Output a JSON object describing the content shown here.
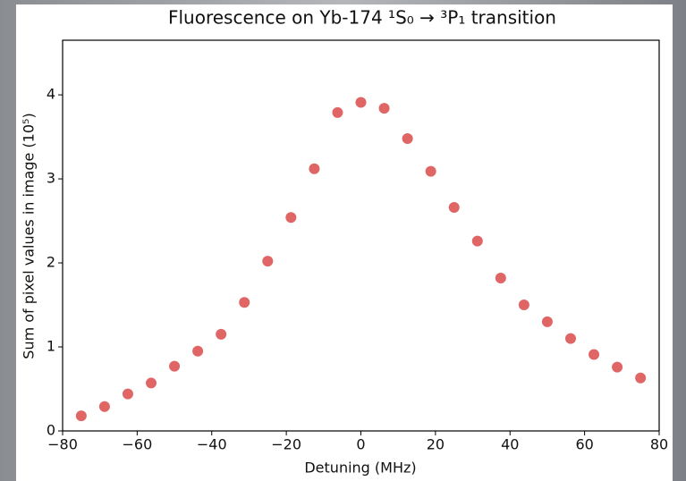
{
  "chart_data": {
    "type": "scatter",
    "title": "Fluorescence on Yb-174 ¹S₀ → ³P₁ transition",
    "xlabel": "Detuning (MHz)",
    "ylabel": "Sum of pixel values in image (10⁵)",
    "x": [
      -75,
      -68.75,
      -62.5,
      -56.25,
      -50,
      -43.75,
      -37.5,
      -31.25,
      -25,
      -18.75,
      -12.5,
      -6.25,
      0,
      6.25,
      12.5,
      18.75,
      25,
      31.25,
      37.5,
      43.75,
      50,
      56.25,
      62.5,
      68.75,
      75
    ],
    "values": [
      0.18,
      0.29,
      0.44,
      0.57,
      0.77,
      0.95,
      1.15,
      1.53,
      2.02,
      2.54,
      3.12,
      3.79,
      3.91,
      3.84,
      3.48,
      3.09,
      2.66,
      2.26,
      1.82,
      1.5,
      1.3,
      1.1,
      0.91,
      0.76,
      0.63
    ],
    "color": "#e06666",
    "xlim": [
      -80,
      80
    ],
    "ylim": [
      0,
      4.65
    ],
    "xticks": [
      {
        "value": -80,
        "label": "−80"
      },
      {
        "value": -60,
        "label": "−60"
      },
      {
        "value": -40,
        "label": "−40"
      },
      {
        "value": -20,
        "label": "−20"
      },
      0,
      20,
      40,
      60,
      80
    ],
    "yticks": [
      0,
      1,
      2,
      3,
      4
    ]
  }
}
